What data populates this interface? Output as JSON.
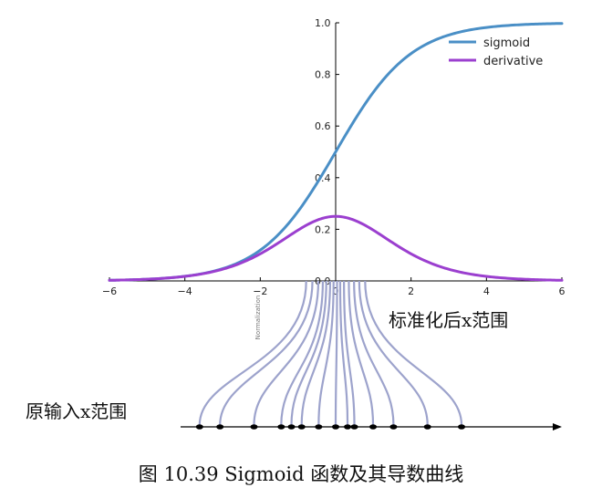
{
  "chart_data": {
    "type": "line",
    "xlim": [
      -6,
      6
    ],
    "ylim": [
      0,
      1
    ],
    "x_ticks": [
      "−6",
      "−4",
      "−2",
      "0",
      "2",
      "4",
      "6"
    ],
    "y_ticks": [
      "0.0",
      "0.2",
      "0.4",
      "0.6",
      "0.8",
      "1.0"
    ],
    "legend_position": "top-right",
    "series": [
      {
        "name": "sigmoid",
        "formula": "1/(1+e^-x)",
        "color": "#4a8fc6"
      },
      {
        "name": "derivative",
        "formula": "s(x)(1-s(x))",
        "color": "#9b3fcf"
      }
    ],
    "original_x_points": [
      -4,
      -3.4,
      -2.4,
      -1.6,
      -1.3,
      -1.0,
      -0.5,
      0,
      0.35,
      0.55,
      1.1,
      1.7,
      2.7,
      3.7
    ],
    "normalized_x_points": [
      -0.85,
      -0.67,
      -0.5,
      -0.37,
      -0.27,
      -0.16,
      -0.06,
      0.04,
      0.13,
      0.24,
      0.38,
      0.53,
      0.68,
      0.85
    ],
    "mapping_line_color": "#9da3cc",
    "rotated_label": "Normalization",
    "normalized_range_label": "标准化后x范围",
    "original_range_label": "原输入x范围",
    "caption": "图  10.39 Sigmoid 函数及其导数曲线"
  }
}
